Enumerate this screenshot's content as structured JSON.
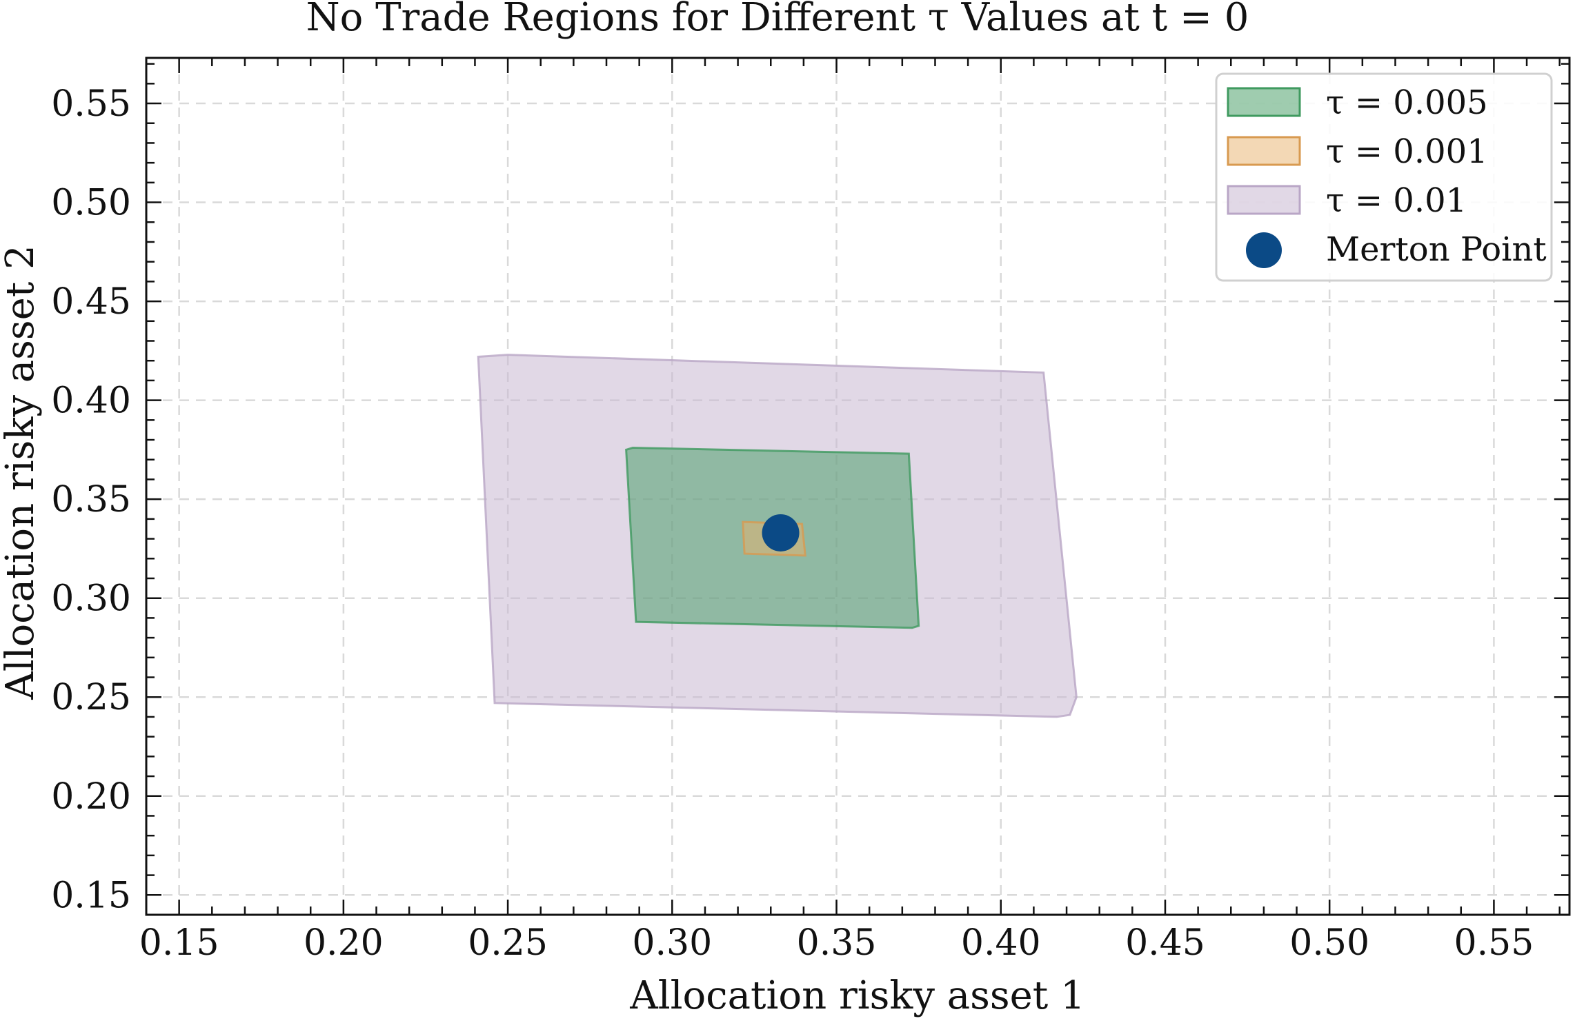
{
  "chart_data": {
    "type": "area",
    "title": "No Trade Regions for Different τ Values at t = 0",
    "xlabel": "Allocation risky asset 1",
    "ylabel": "Allocation risky asset 2",
    "xlim": [
      0.14,
      0.573
    ],
    "ylim": [
      0.14,
      0.573
    ],
    "xticks": [
      "0.15",
      "0.20",
      "0.25",
      "0.30",
      "0.35",
      "0.40",
      "0.45",
      "0.50",
      "0.55"
    ],
    "yticks": [
      "0.15",
      "0.20",
      "0.25",
      "0.30",
      "0.35",
      "0.40",
      "0.45",
      "0.50",
      "0.55"
    ],
    "grid": true,
    "legend_position": "top-right",
    "series": [
      {
        "name": "τ = 0.01",
        "kind": "region",
        "color": "#c9b8d1",
        "edge": "#b9a6c6",
        "points": [
          [
            0.241,
            0.422
          ],
          [
            0.25,
            0.423
          ],
          [
            0.413,
            0.414
          ],
          [
            0.423,
            0.25
          ],
          [
            0.421,
            0.241
          ],
          [
            0.417,
            0.24
          ],
          [
            0.246,
            0.247
          ]
        ]
      },
      {
        "name": "τ = 0.005",
        "kind": "region",
        "color": "#3f9a5f",
        "edge": "#3f9a5f",
        "points": [
          [
            0.286,
            0.375
          ],
          [
            0.288,
            0.376
          ],
          [
            0.372,
            0.373
          ],
          [
            0.375,
            0.286
          ],
          [
            0.373,
            0.285
          ],
          [
            0.289,
            0.288
          ]
        ]
      },
      {
        "name": "τ = 0.001",
        "kind": "region",
        "color": "#e8b26c",
        "edge": "#d89a50",
        "points": [
          [
            0.3215,
            0.3385
          ],
          [
            0.3395,
            0.3375
          ],
          [
            0.3405,
            0.3215
          ],
          [
            0.322,
            0.3225
          ]
        ]
      },
      {
        "name": "Merton Point",
        "kind": "point",
        "color": "#0b4a86",
        "x": 0.333,
        "y": 0.333
      }
    ]
  }
}
